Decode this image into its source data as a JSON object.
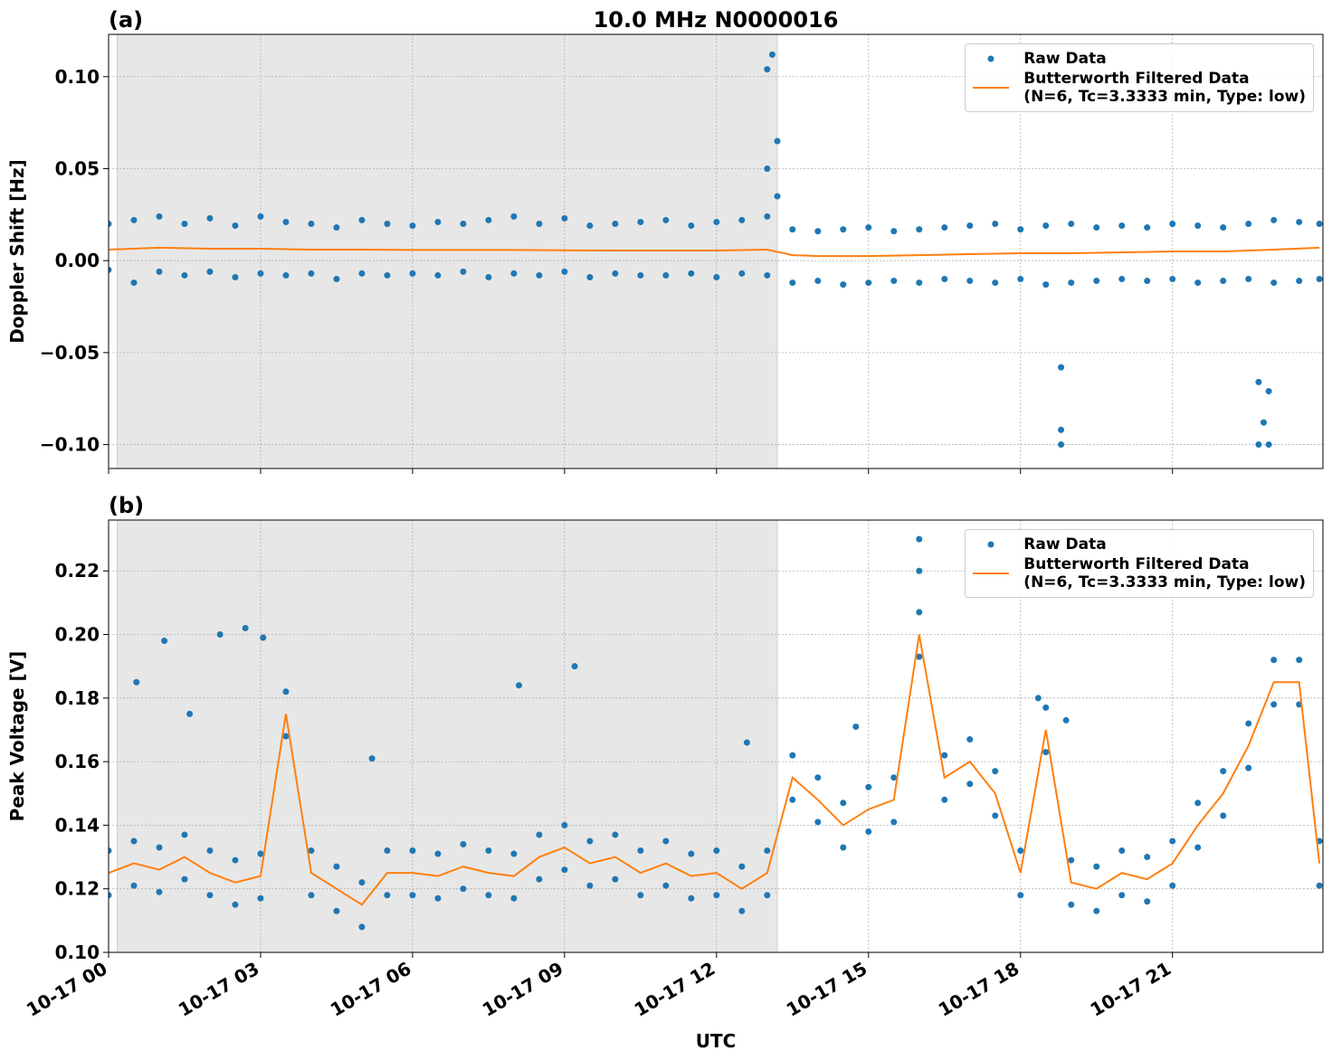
{
  "chart_data": [
    {
      "type": "scatter",
      "panel_label": "(a)",
      "title": "10.0 MHz N0000016",
      "ylabel": "Doppler Shift [Hz]",
      "xlim": [
        0,
        23.97
      ],
      "ylim": [
        -0.113,
        0.123
      ],
      "xticks": [
        0,
        3,
        6,
        9,
        12,
        15,
        18,
        21
      ],
      "yticks": [
        {
          "value": -0.1,
          "label": "−0.10"
        },
        {
          "value": -0.05,
          "label": "−0.05"
        },
        {
          "value": 0,
          "label": "0.00"
        },
        {
          "value": 0.05,
          "label": "0.05"
        },
        {
          "value": 0.1,
          "label": "0.10"
        }
      ],
      "grid": true,
      "legend": "upper right",
      "shaded_span": [
        0.17,
        13.2
      ],
      "series": [
        {
          "name": "Raw Data",
          "kind": "points",
          "color": "#1f77b4",
          "x": [
            0,
            0,
            0.5,
            0.5,
            1,
            1,
            1.5,
            1.5,
            2,
            2,
            2.5,
            2.5,
            3,
            3,
            3.5,
            3.5,
            4,
            4,
            4.5,
            4.5,
            5,
            5,
            5.5,
            5.5,
            6,
            6,
            6.5,
            6.5,
            7,
            7,
            7.5,
            7.5,
            8,
            8,
            8.5,
            8.5,
            9,
            9,
            9.5,
            9.5,
            10,
            10,
            10.5,
            10.5,
            11,
            11,
            11.5,
            11.5,
            12,
            12,
            12.5,
            12.5,
            13,
            13,
            13.5,
            13.5,
            14,
            14,
            14.5,
            14.5,
            15,
            15,
            15.5,
            15.5,
            16,
            16,
            16.5,
            16.5,
            17,
            17,
            17.5,
            17.5,
            18,
            18,
            18.5,
            18.5,
            19,
            19,
            19.5,
            19.5,
            20,
            20,
            20.5,
            20.5,
            21,
            21,
            21.5,
            21.5,
            22,
            22,
            22.5,
            22.5,
            23,
            23,
            23.5,
            23.5,
            23.9,
            23.9,
            13.0,
            13.0,
            13.1,
            13.2,
            13.2,
            18.8,
            18.8,
            18.8,
            22.7,
            22.7,
            22.9,
            22.9,
            22.8
          ],
          "values": [
            0.02,
            -0.005,
            0.022,
            -0.012,
            0.024,
            -0.006,
            0.02,
            -0.008,
            0.023,
            -0.006,
            0.019,
            -0.009,
            0.024,
            -0.007,
            0.021,
            -0.008,
            0.02,
            -0.007,
            0.018,
            -0.01,
            0.022,
            -0.007,
            0.02,
            -0.008,
            0.019,
            -0.007,
            0.021,
            -0.008,
            0.02,
            -0.006,
            0.022,
            -0.009,
            0.024,
            -0.007,
            0.02,
            -0.008,
            0.023,
            -0.006,
            0.019,
            -0.009,
            0.02,
            -0.007,
            0.021,
            -0.008,
            0.022,
            -0.008,
            0.019,
            -0.007,
            0.021,
            -0.009,
            0.022,
            -0.007,
            0.024,
            -0.008,
            0.017,
            -0.012,
            0.016,
            -0.011,
            0.017,
            -0.013,
            0.018,
            -0.012,
            0.016,
            -0.011,
            0.017,
            -0.012,
            0.018,
            -0.01,
            0.019,
            -0.011,
            0.02,
            -0.012,
            0.017,
            -0.01,
            0.019,
            -0.013,
            0.02,
            -0.012,
            0.018,
            -0.011,
            0.019,
            -0.01,
            0.018,
            -0.011,
            0.02,
            -0.01,
            0.019,
            -0.012,
            0.018,
            -0.011,
            0.02,
            -0.01,
            0.022,
            -0.012,
            0.021,
            -0.011,
            0.02,
            -0.01,
            0.104,
            0.05,
            0.112,
            0.065,
            0.035,
            -0.058,
            -0.1,
            -0.092,
            -0.066,
            -0.1,
            -0.071,
            -0.1,
            -0.088
          ]
        },
        {
          "name": "Butterworth Filtered Data\n(N=6, Tc=3.3333 min, Type: low)",
          "kind": "line",
          "color": "#ff7f0e",
          "x": [
            0,
            1,
            2,
            3,
            4,
            5,
            6,
            7,
            8,
            9,
            10,
            11,
            12,
            13,
            13.5,
            14,
            15,
            16,
            17,
            18,
            19,
            20,
            21,
            22,
            23,
            23.9
          ],
          "values": [
            0.006,
            0.007,
            0.0065,
            0.0065,
            0.006,
            0.006,
            0.0058,
            0.0058,
            0.0058,
            0.0056,
            0.0055,
            0.0055,
            0.0055,
            0.006,
            0.003,
            0.0025,
            0.0025,
            0.003,
            0.0035,
            0.004,
            0.004,
            0.0045,
            0.005,
            0.005,
            0.006,
            0.007
          ]
        }
      ]
    },
    {
      "type": "scatter",
      "panel_label": "(b)",
      "ylabel": "Peak Voltage [V]",
      "xlabel": "UTC",
      "xlim": [
        0,
        23.97
      ],
      "ylim": [
        0.1,
        0.236
      ],
      "xticks": [
        {
          "value": 0,
          "label": "10-17 00"
        },
        {
          "value": 3,
          "label": "10-17 03"
        },
        {
          "value": 6,
          "label": "10-17 06"
        },
        {
          "value": 9,
          "label": "10-17 09"
        },
        {
          "value": 12,
          "label": "10-17 12"
        },
        {
          "value": 15,
          "label": "10-17 15"
        },
        {
          "value": 18,
          "label": "10-17 18"
        },
        {
          "value": 21,
          "label": "10-17 21"
        }
      ],
      "yticks": [
        {
          "value": 0.1,
          "label": "0.10"
        },
        0.12,
        0.14,
        0.16,
        0.18,
        {
          "value": 0.2,
          "label": "0.20"
        },
        0.22
      ],
      "grid": true,
      "legend": "upper right",
      "shaded_span": [
        0.17,
        13.2
      ],
      "series": [
        {
          "name": "Raw Data",
          "kind": "points",
          "color": "#1f77b4",
          "x": [
            0,
            0,
            0.5,
            0.5,
            1,
            1,
            1.5,
            1.5,
            2,
            2,
            2.5,
            2.5,
            3,
            3,
            3.5,
            3.5,
            4,
            4,
            4.5,
            4.5,
            5,
            5,
            5.5,
            5.5,
            6,
            6,
            6.5,
            6.5,
            7,
            7,
            7.5,
            7.5,
            8,
            8,
            8.5,
            8.5,
            9,
            9,
            9.5,
            9.5,
            10,
            10,
            10.5,
            10.5,
            11,
            11,
            11.5,
            11.5,
            12,
            12,
            12.5,
            12.5,
            13,
            13,
            13.5,
            13.5,
            14,
            14,
            14.5,
            14.5,
            15,
            15,
            15.5,
            15.5,
            16,
            16,
            16.5,
            16.5,
            17,
            17,
            17.5,
            17.5,
            18,
            18,
            18.5,
            18.5,
            19,
            19,
            19.5,
            19.5,
            20,
            20,
            20.5,
            20.5,
            21,
            21,
            21.5,
            21.5,
            22,
            22,
            22.5,
            22.5,
            23,
            23,
            23.5,
            23.5,
            23.9,
            23.9,
            0.55,
            1.1,
            1.6,
            2.2,
            2.7,
            3.05,
            8.1,
            9.2,
            16,
            16,
            18.35,
            18.9,
            5.2,
            12.6,
            14.75
          ],
          "values": [
            0.132,
            0.118,
            0.135,
            0.121,
            0.133,
            0.119,
            0.137,
            0.123,
            0.132,
            0.118,
            0.129,
            0.115,
            0.131,
            0.117,
            0.182,
            0.168,
            0.132,
            0.118,
            0.127,
            0.113,
            0.122,
            0.108,
            0.132,
            0.118,
            0.132,
            0.118,
            0.131,
            0.117,
            0.134,
            0.12,
            0.132,
            0.118,
            0.131,
            0.117,
            0.137,
            0.123,
            0.14,
            0.126,
            0.135,
            0.121,
            0.137,
            0.123,
            0.132,
            0.118,
            0.135,
            0.121,
            0.131,
            0.117,
            0.132,
            0.118,
            0.127,
            0.113,
            0.132,
            0.118,
            0.162,
            0.148,
            0.155,
            0.141,
            0.147,
            0.133,
            0.152,
            0.138,
            0.155,
            0.141,
            0.207,
            0.193,
            0.162,
            0.148,
            0.167,
            0.153,
            0.157,
            0.143,
            0.132,
            0.118,
            0.177,
            0.163,
            0.129,
            0.115,
            0.127,
            0.113,
            0.132,
            0.118,
            0.13,
            0.116,
            0.135,
            0.121,
            0.147,
            0.133,
            0.157,
            0.143,
            0.172,
            0.158,
            0.192,
            0.178,
            0.192,
            0.178,
            0.135,
            0.121,
            0.185,
            0.198,
            0.175,
            0.2,
            0.202,
            0.199,
            0.184,
            0.19,
            0.23,
            0.22,
            0.18,
            0.173,
            0.161,
            0.166,
            0.171
          ]
        },
        {
          "name": "Butterworth Filtered Data\n(N=6, Tc=3.3333 min, Type: low)",
          "kind": "line",
          "color": "#ff7f0e",
          "x": [
            0,
            0.5,
            1,
            1.5,
            2,
            2.5,
            3,
            3.5,
            4,
            4.5,
            5,
            5.5,
            6,
            6.5,
            7,
            7.5,
            8,
            8.5,
            9,
            9.5,
            10,
            10.5,
            11,
            11.5,
            12,
            12.5,
            13,
            13.5,
            14,
            14.5,
            15,
            15.5,
            16,
            16.5,
            17,
            17.5,
            18,
            18.5,
            19,
            19.5,
            20,
            20.5,
            21,
            21.5,
            22,
            22.5,
            23,
            23.5,
            23.9
          ],
          "values": [
            0.125,
            0.128,
            0.126,
            0.13,
            0.125,
            0.122,
            0.124,
            0.175,
            0.125,
            0.12,
            0.115,
            0.125,
            0.125,
            0.124,
            0.127,
            0.125,
            0.124,
            0.13,
            0.133,
            0.128,
            0.13,
            0.125,
            0.128,
            0.124,
            0.125,
            0.12,
            0.125,
            0.155,
            0.148,
            0.14,
            0.145,
            0.148,
            0.2,
            0.155,
            0.16,
            0.15,
            0.125,
            0.17,
            0.122,
            0.12,
            0.125,
            0.123,
            0.128,
            0.14,
            0.15,
            0.165,
            0.185,
            0.185,
            0.128
          ]
        }
      ]
    }
  ]
}
